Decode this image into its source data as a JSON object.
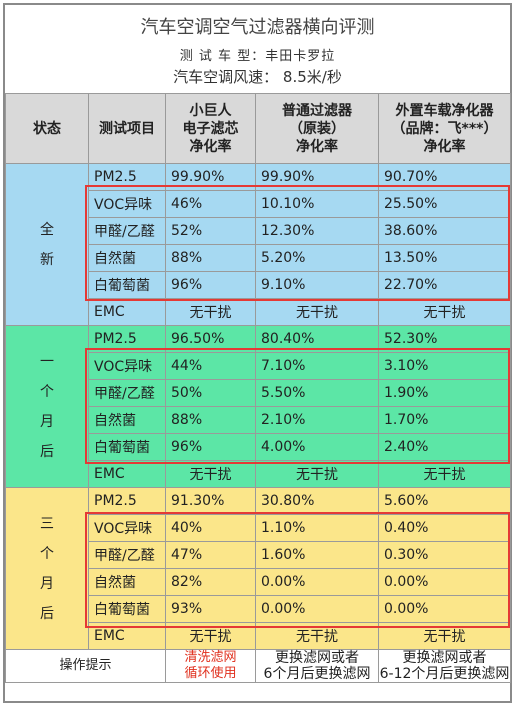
{
  "title": {
    "main": "汽车空调空气过滤器横向评测",
    "vehicle": "测 试 车 型：丰田卡罗拉",
    "fan_speed": "汽车空调风速： 8.5米/秒"
  },
  "headers": {
    "state": "状态",
    "item": "测试项目",
    "col1_line1": "小巨人",
    "col1_line2": "电子滤芯",
    "col1_line3": "净化率",
    "col2_line1": "普通过滤器",
    "col2_line2": "（原装）",
    "col2_line3": "净化率",
    "col3_line1": "外置车载净化器",
    "col3_line2": "（品牌：飞***）",
    "col3_line3": "净化率"
  },
  "groups": [
    {
      "state": "全\n新",
      "rows": [
        {
          "item": "PM2.5",
          "a": "99.90%",
          "b": "99.90%",
          "c": "90.70%"
        },
        {
          "item": "VOC异味",
          "a": "46%",
          "b": "10.10%",
          "c": "25.50%"
        },
        {
          "item": "甲醛/乙醛",
          "a": "52%",
          "b": "12.30%",
          "c": "38.60%"
        },
        {
          "item": "自然菌",
          "a": "88%",
          "b": "5.20%",
          "c": "13.50%"
        },
        {
          "item": "白葡萄菌",
          "a": "96%",
          "b": "9.10%",
          "c": "22.70%"
        },
        {
          "item": "EMC",
          "a": "无干扰",
          "b": "无干扰",
          "c": "无干扰"
        }
      ]
    },
    {
      "state": "一\n个\n月\n后",
      "rows": [
        {
          "item": "PM2.5",
          "a": "96.50%",
          "b": "80.40%",
          "c": "52.30%"
        },
        {
          "item": "VOC异味",
          "a": "44%",
          "b": "7.10%",
          "c": "3.10%"
        },
        {
          "item": "甲醛/乙醛",
          "a": "50%",
          "b": "5.50%",
          "c": "1.90%"
        },
        {
          "item": "自然菌",
          "a": "88%",
          "b": "2.10%",
          "c": "1.70%"
        },
        {
          "item": "白葡萄菌",
          "a": "96%",
          "b": "4.00%",
          "c": "2.40%"
        },
        {
          "item": "EMC",
          "a": "无干扰",
          "b": "无干扰",
          "c": "无干扰"
        }
      ]
    },
    {
      "state": "三\n个\n月\n后",
      "rows": [
        {
          "item": "PM2.5",
          "a": "91.30%",
          "b": "30.80%",
          "c": "5.60%"
        },
        {
          "item": "VOC异味",
          "a": "40%",
          "b": "1.10%",
          "c": "0.40%"
        },
        {
          "item": "甲醛/乙醛",
          "a": "47%",
          "b": "1.60%",
          "c": "0.30%"
        },
        {
          "item": "自然菌",
          "a": "82%",
          "b": "0.00%",
          "c": "0.00%"
        },
        {
          "item": "白葡萄菌",
          "a": "93%",
          "b": "0.00%",
          "c": "0.00%"
        },
        {
          "item": "EMC",
          "a": "无干扰",
          "b": "无干扰",
          "c": "无干扰"
        }
      ]
    }
  ],
  "footer": {
    "label": "操作提示",
    "col1_line1": "清洗滤网",
    "col1_line2": "循环使用",
    "col2_line1": "更换滤网或者",
    "col2_line2": "6个月后更换滤网",
    "col3_line1": "更换滤网或者",
    "col3_line2": "6-12个月后更换滤网"
  },
  "colors": {
    "new": "#a6d9f2",
    "one_month": "#5ce6a6",
    "three_month": "#fbe68a",
    "highlight": "#e53935",
    "tip_red": "#e0301e"
  }
}
